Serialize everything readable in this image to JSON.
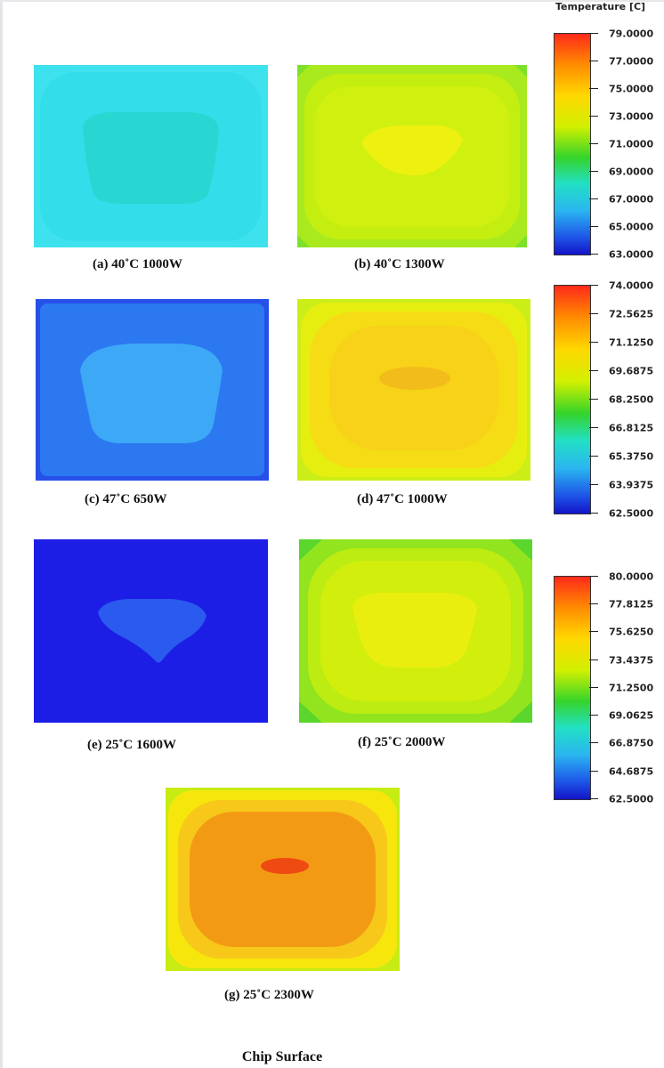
{
  "legend_title": "Temperature [C]",
  "legends": [
    {
      "labels": [
        "79.0000",
        "77.0000",
        "75.0000",
        "73.0000",
        "71.0000",
        "69.0000",
        "67.0000",
        "65.0000",
        "63.0000"
      ]
    },
    {
      "labels": [
        "74.0000",
        "72.5625",
        "71.1250",
        "69.6875",
        "68.2500",
        "66.8125",
        "65.3750",
        "63.9375",
        "62.5000"
      ]
    },
    {
      "labels": [
        "80.0000",
        "77.8125",
        "75.6250",
        "73.4375",
        "71.2500",
        "69.0625",
        "66.8750",
        "64.6875",
        "62.5000"
      ]
    }
  ],
  "panels": {
    "a": {
      "caption": "(a)  40˚C  1000W"
    },
    "b": {
      "caption": "(b)  40˚C  1300W"
    },
    "c": {
      "caption": "(c)   47˚C  650W"
    },
    "d": {
      "caption": "(d)  47˚C  1000W"
    },
    "e": {
      "caption": "(e)  25˚C  1600W"
    },
    "f": {
      "caption": "(f)  25˚C  2000W"
    },
    "g": {
      "caption": "(g)  25˚C  2300W"
    }
  },
  "footer": "Chip Surface"
}
